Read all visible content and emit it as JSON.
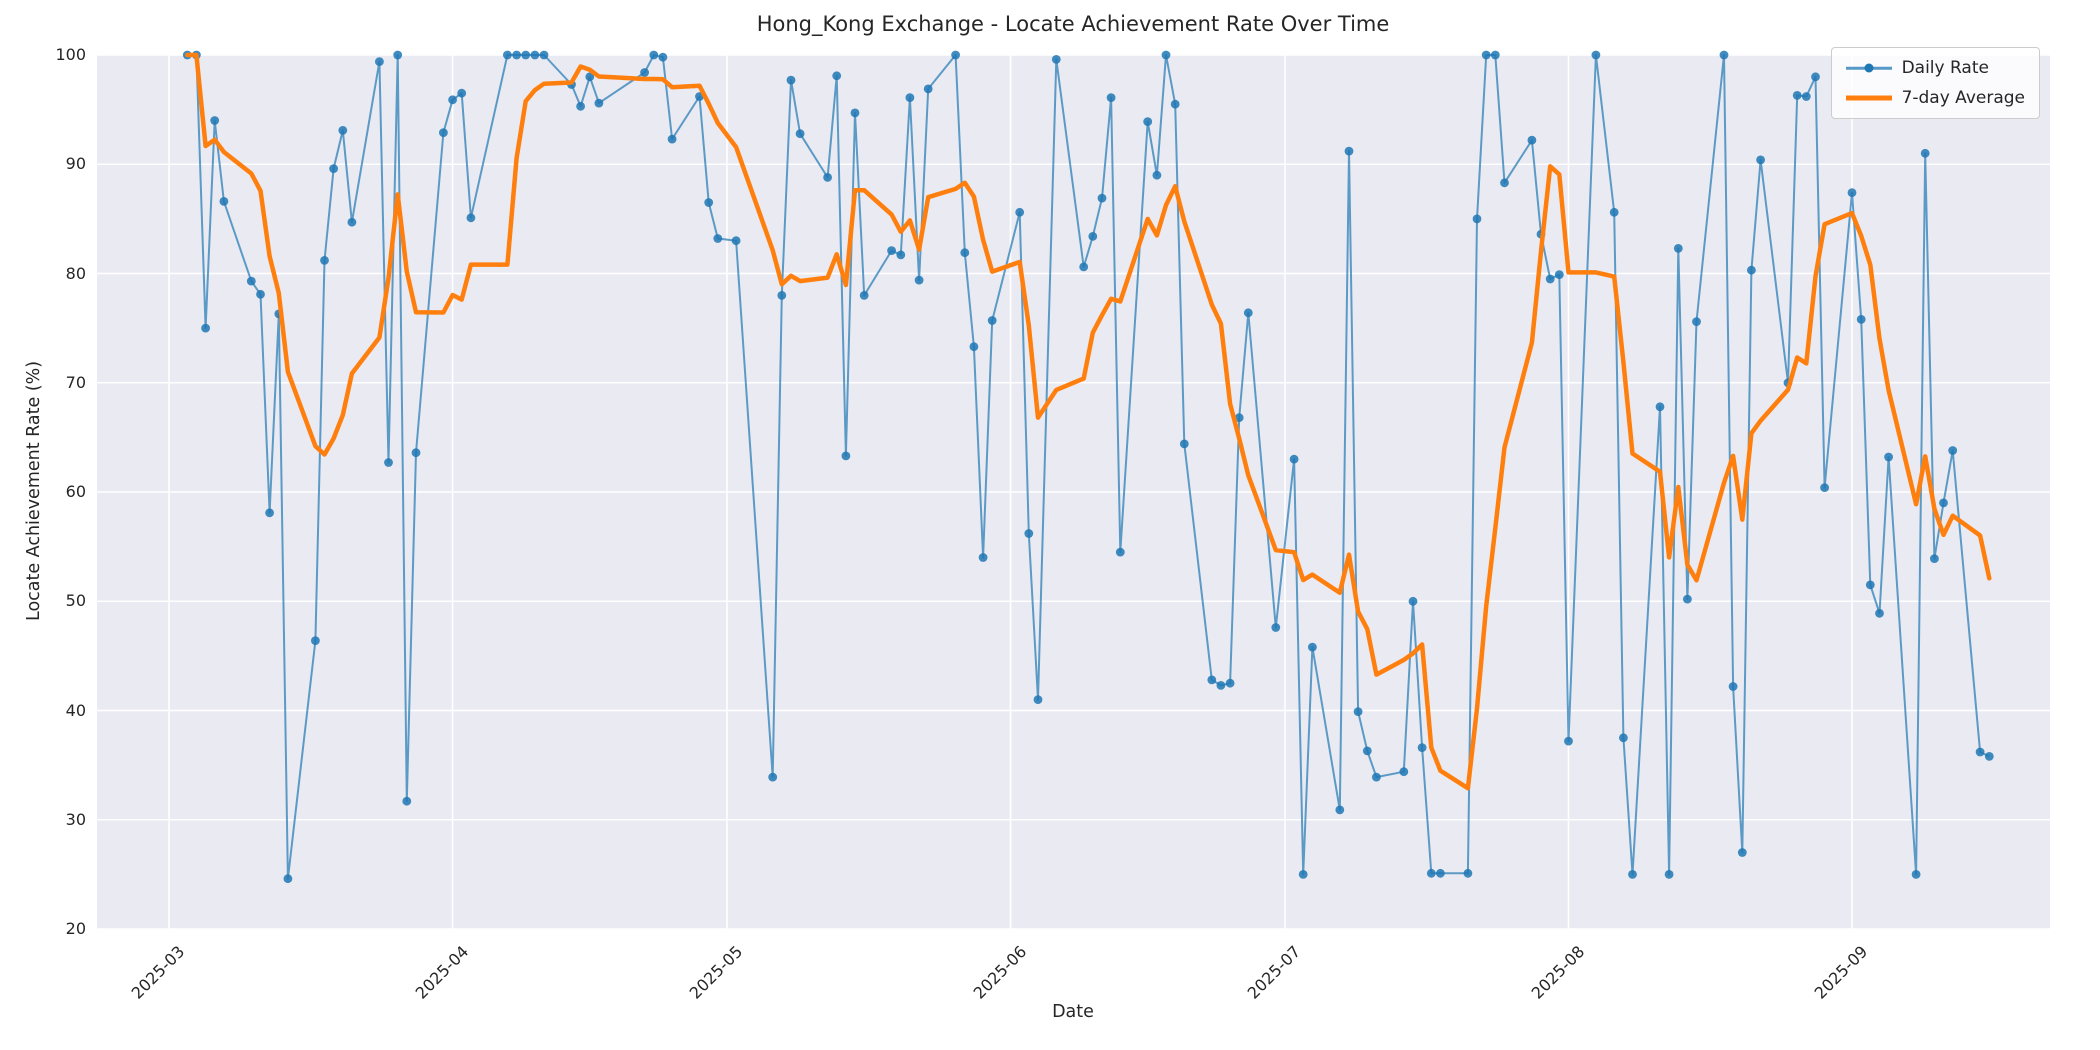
{
  "title": "Hong_Kong Exchange - Locate Achievement Rate Over Time",
  "colors": {
    "daily_line": "#1f77b4",
    "daily_line_apparent": "#5294c3",
    "avg_line": "#ff7f0e",
    "plot_background": "#eaeaf2",
    "gridline": "#ffffff",
    "text": "#262626",
    "legend_border": "#cccccc"
  },
  "chart_data": {
    "type": "line",
    "title": "Hong_Kong Exchange - Locate Achievement Rate Over Time",
    "xlabel": "Date",
    "ylabel": "Locate Achievement Rate (%)",
    "ylim": [
      20,
      100
    ],
    "grid": true,
    "legend_position": "upper right",
    "x_ticks": [
      "2025-03",
      "2025-04",
      "2025-05",
      "2025-06",
      "2025-07",
      "2025-08",
      "2025-09"
    ],
    "y_ticks": [
      20,
      30,
      40,
      50,
      60,
      70,
      80,
      90,
      100
    ],
    "x_tick_rotation_deg": 45,
    "series": [
      {
        "name": "Daily Rate",
        "color": "#1f77b4",
        "marker": "circle",
        "linewidth": 2,
        "dates": [
          "2025-03-03",
          "2025-03-04",
          "2025-03-05",
          "2025-03-06",
          "2025-03-07",
          "2025-03-10",
          "2025-03-11",
          "2025-03-12",
          "2025-03-13",
          "2025-03-14",
          "2025-03-17",
          "2025-03-18",
          "2025-03-19",
          "2025-03-20",
          "2025-03-21",
          "2025-03-24",
          "2025-03-25",
          "2025-03-26",
          "2025-03-27",
          "2025-03-28",
          "2025-03-31",
          "2025-04-01",
          "2025-04-02",
          "2025-04-03",
          "2025-04-07",
          "2025-04-08",
          "2025-04-09",
          "2025-04-10",
          "2025-04-11",
          "2025-04-14",
          "2025-04-15",
          "2025-04-16",
          "2025-04-17",
          "2025-04-22",
          "2025-04-23",
          "2025-04-24",
          "2025-04-25",
          "2025-04-28",
          "2025-04-29",
          "2025-04-30",
          "2025-05-02",
          "2025-05-06",
          "2025-05-07",
          "2025-05-08",
          "2025-05-09",
          "2025-05-12",
          "2025-05-13",
          "2025-05-14",
          "2025-05-15",
          "2025-05-16",
          "2025-05-19",
          "2025-05-20",
          "2025-05-21",
          "2025-05-22",
          "2025-05-23",
          "2025-05-26",
          "2025-05-27",
          "2025-05-28",
          "2025-05-29",
          "2025-05-30",
          "2025-06-02",
          "2025-06-03",
          "2025-06-04",
          "2025-06-06",
          "2025-06-09",
          "2025-06-10",
          "2025-06-11",
          "2025-06-12",
          "2025-06-13",
          "2025-06-16",
          "2025-06-17",
          "2025-06-18",
          "2025-06-19",
          "2025-06-20",
          "2025-06-23",
          "2025-06-24",
          "2025-06-25",
          "2025-06-26",
          "2025-06-27",
          "2025-06-30",
          "2025-07-02",
          "2025-07-03",
          "2025-07-04",
          "2025-07-07",
          "2025-07-08",
          "2025-07-09",
          "2025-07-10",
          "2025-07-11",
          "2025-07-14",
          "2025-07-15",
          "2025-07-16",
          "2025-07-17",
          "2025-07-18",
          "2025-07-21",
          "2025-07-22",
          "2025-07-23",
          "2025-07-24",
          "2025-07-25",
          "2025-07-28",
          "2025-07-29",
          "2025-07-30",
          "2025-07-31",
          "2025-08-01",
          "2025-08-04",
          "2025-08-06",
          "2025-08-07",
          "2025-08-08",
          "2025-08-11",
          "2025-08-12",
          "2025-08-13",
          "2025-08-14",
          "2025-08-15",
          "2025-08-18",
          "2025-08-19",
          "2025-08-20",
          "2025-08-21",
          "2025-08-22",
          "2025-08-25",
          "2025-08-26",
          "2025-08-27",
          "2025-08-28",
          "2025-08-29",
          "2025-09-01",
          "2025-09-02",
          "2025-09-03",
          "2025-09-04",
          "2025-09-05",
          "2025-09-08",
          "2025-09-09",
          "2025-09-10",
          "2025-09-11",
          "2025-09-12",
          "2025-09-15",
          "2025-09-16"
        ],
        "values": [
          100,
          100,
          75.0,
          94.0,
          86.6,
          79.3,
          78.1,
          58.1,
          76.3,
          24.6,
          46.4,
          81.2,
          89.6,
          93.1,
          84.7,
          99.4,
          62.7,
          100,
          31.7,
          63.6,
          92.9,
          95.9,
          96.5,
          85.1,
          100,
          100,
          100,
          100,
          100,
          97.3,
          95.3,
          98.0,
          95.6,
          98.4,
          100,
          99.8,
          92.3,
          96.2,
          86.5,
          83.2,
          83.0,
          33.9,
          78.0,
          97.7,
          92.8,
          88.8,
          98.1,
          63.3,
          94.7,
          78.0,
          82.1,
          81.7,
          96.1,
          79.4,
          96.9,
          100,
          81.9,
          73.3,
          54.0,
          75.7,
          85.6,
          56.2,
          41.0,
          99.6,
          80.6,
          83.4,
          86.9,
          96.1,
          54.5,
          93.9,
          89.0,
          100,
          95.5,
          64.4,
          42.8,
          42.3,
          42.5,
          66.8,
          76.4,
          47.6,
          63.0,
          25.0,
          45.8,
          30.9,
          91.2,
          39.9,
          36.3,
          33.9,
          34.4,
          50.0,
          36.6,
          25.1,
          25.1,
          25.1,
          85.0,
          100,
          100,
          88.3,
          92.2,
          83.6,
          79.5,
          79.9,
          37.2,
          100,
          85.6,
          37.5,
          25.0,
          67.8,
          25.0,
          82.3,
          50.2,
          75.6,
          100,
          42.2,
          27.0,
          80.3,
          90.4,
          70.0,
          96.3,
          96.2,
          98.0,
          60.4,
          87.4,
          75.8,
          51.5,
          48.9,
          63.2,
          25.0,
          91.0,
          53.9,
          59.0,
          63.8,
          36.2,
          35.8
        ]
      },
      {
        "name": "7-day Average",
        "color": "#ff7f0e",
        "marker": "none",
        "linewidth": 4.5,
        "derived": "trailing 7-point rolling mean of Daily Rate (min_periods=1)"
      }
    ]
  },
  "axes": {
    "xlabel": "Date",
    "ylabel": "Locate Achievement Rate (%)"
  }
}
